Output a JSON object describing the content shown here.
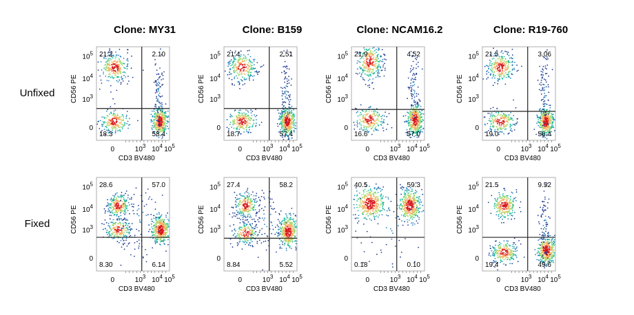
{
  "columns": [
    "Clone: MY31",
    "Clone: B159",
    "Clone: NCAM16.2",
    "Clone: R19-760"
  ],
  "rows": [
    {
      "label": "Unfixed",
      "panels": [
        {
          "quadrants": [
            "21.2",
            "2.10",
            "18.3",
            "58.4"
          ]
        },
        {
          "quadrants": [
            "21.4",
            "2.51",
            "18.7",
            "57.4"
          ]
        },
        {
          "quadrants": [
            "21.9",
            "4.52",
            "16.6",
            "57.0"
          ]
        },
        {
          "quadrants": [
            "21.5",
            "3.06",
            "19.0",
            "56.4"
          ]
        }
      ]
    },
    {
      "label": "Fixed",
      "panels": [
        {
          "quadrants": [
            "28.6",
            "57.0",
            "8.30",
            "6.14"
          ]
        },
        {
          "quadrants": [
            "27.4",
            "58.2",
            "8.84",
            "5.52"
          ]
        },
        {
          "quadrants": [
            "40.5",
            "59.3",
            "0.18",
            "0.10"
          ]
        },
        {
          "quadrants": [
            "21.5",
            "9.52",
            "19.4",
            "49.6"
          ]
        }
      ]
    }
  ],
  "x_axis_label": "CD3 BV480",
  "y_axis_label": "CD56 PE",
  "x_ticks": [
    {
      "text": "0"
    },
    {
      "text": "10",
      "sup": "3"
    },
    {
      "text": "10",
      "sup": "4"
    },
    {
      "text": "10",
      "sup": "5"
    }
  ],
  "y_ticks": [
    {
      "text": "10",
      "sup": "5"
    },
    {
      "text": "10",
      "sup": "4"
    },
    {
      "text": "10",
      "sup": "3"
    },
    {
      "text": "0"
    }
  ]
}
